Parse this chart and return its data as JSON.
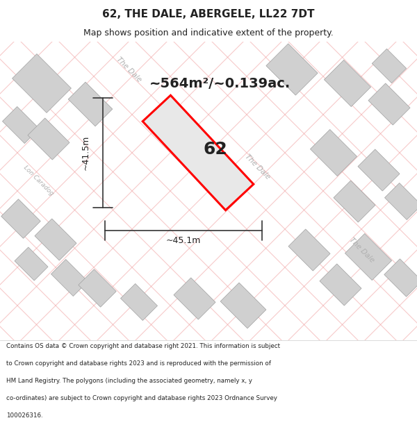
{
  "title": "62, THE DALE, ABERGELE, LL22 7DT",
  "subtitle": "Map shows position and indicative extent of the property.",
  "area_label": "~564m²/~0.139ac.",
  "plot_number": "62",
  "width_label": "~45.1m",
  "height_label": "~41.5m",
  "footer_lines": [
    "Contains OS data © Crown copyright and database right 2021. This information is subject",
    "to Crown copyright and database rights 2023 and is reproduced with the permission of",
    "HM Land Registry. The polygons (including the associated geometry, namely x, y",
    "co-ordinates) are subject to Crown copyright and database rights 2023 Ordnance Survey",
    "100026316."
  ],
  "map_bg": "#f5f4f4",
  "plot_edge": "#ff0000",
  "pink_line": "#f0a0a0",
  "building_fill": "#d0d0d0",
  "building_edge": "#a0a0a0"
}
